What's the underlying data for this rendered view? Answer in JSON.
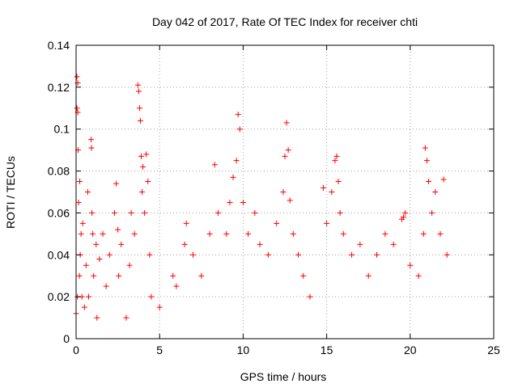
{
  "chart_data": {
    "type": "scatter",
    "title": "Day 042 of 2017, Rate Of TEC Index for receiver chti",
    "xlabel": "GPS time / hours",
    "ylabel": "ROTI / TECUs",
    "xlim": [
      0,
      25
    ],
    "ylim": [
      0,
      0.14
    ],
    "x_ticks": [
      "0",
      "5",
      "10",
      "15",
      "20",
      "25"
    ],
    "y_ticks": [
      "0",
      "0.02",
      "0.04",
      "0.06",
      "0.08",
      "0.1",
      "0.12",
      "0.14"
    ],
    "grid": true,
    "marker": "+",
    "color": "#ff0000",
    "data_gaps_hours": [
      [
        5.2,
        5.5
      ],
      [
        14.2,
        14.5
      ]
    ],
    "series": [
      {
        "x": [
          0.0,
          0.05,
          0.05,
          0.08,
          0.1,
          0.1,
          0.12,
          0.15,
          0.2,
          0.22,
          0.25,
          0.3,
          0.35,
          0.4,
          0.5,
          0.6,
          0.7,
          0.75,
          0.9,
          0.92,
          0.95,
          1.0,
          1.05,
          1.2,
          1.25,
          1.4,
          1.6,
          1.8,
          2.0,
          2.3,
          2.4,
          2.5,
          2.55,
          2.7,
          3.0,
          3.2,
          3.3,
          3.5,
          3.7,
          3.75,
          3.8,
          3.85,
          3.9,
          3.95,
          4.0,
          4.1,
          4.2,
          4.3,
          4.4,
          4.5,
          5.0,
          5.8,
          6.0,
          6.5,
          6.6,
          7.0,
          7.5,
          8.0,
          8.3,
          8.5,
          9.0,
          9.2,
          9.4,
          9.6,
          9.7,
          9.8,
          10.0,
          10.3,
          10.7,
          11.0,
          11.5,
          12.0,
          12.4,
          12.5,
          12.6,
          12.7,
          12.8,
          13.0,
          13.3,
          13.6,
          14.0,
          14.8,
          15.0,
          15.3,
          15.5,
          15.6,
          15.7,
          15.8,
          16.0,
          16.5,
          17.0,
          17.5,
          18.0,
          18.5,
          19.0,
          19.5,
          19.6,
          19.7,
          20.0,
          20.5,
          20.8,
          20.9,
          21.0,
          21.1,
          21.3,
          21.5,
          21.8,
          22.0,
          22.2
        ],
        "y": [
          0.012,
          0.125,
          0.11,
          0.02,
          0.122,
          0.108,
          0.09,
          0.065,
          0.03,
          0.075,
          0.04,
          0.05,
          0.02,
          0.055,
          0.015,
          0.035,
          0.07,
          0.02,
          0.095,
          0.091,
          0.06,
          0.05,
          0.03,
          0.045,
          0.01,
          0.038,
          0.05,
          0.025,
          0.04,
          0.06,
          0.074,
          0.052,
          0.03,
          0.045,
          0.01,
          0.035,
          0.06,
          0.05,
          0.121,
          0.118,
          0.11,
          0.104,
          0.087,
          0.07,
          0.082,
          0.06,
          0.088,
          0.075,
          0.04,
          0.02,
          0.015,
          0.03,
          0.025,
          0.045,
          0.055,
          0.04,
          0.03,
          0.05,
          0.083,
          0.06,
          0.05,
          0.065,
          0.077,
          0.085,
          0.107,
          0.1,
          0.065,
          0.05,
          0.06,
          0.045,
          0.04,
          0.055,
          0.07,
          0.087,
          0.103,
          0.09,
          0.066,
          0.05,
          0.04,
          0.03,
          0.02,
          0.072,
          0.055,
          0.07,
          0.085,
          0.087,
          0.075,
          0.06,
          0.05,
          0.04,
          0.045,
          0.03,
          0.04,
          0.05,
          0.045,
          0.057,
          0.058,
          0.06,
          0.035,
          0.03,
          0.05,
          0.091,
          0.085,
          0.075,
          0.06,
          0.07,
          0.05,
          0.076,
          0.04
        ]
      }
    ]
  }
}
